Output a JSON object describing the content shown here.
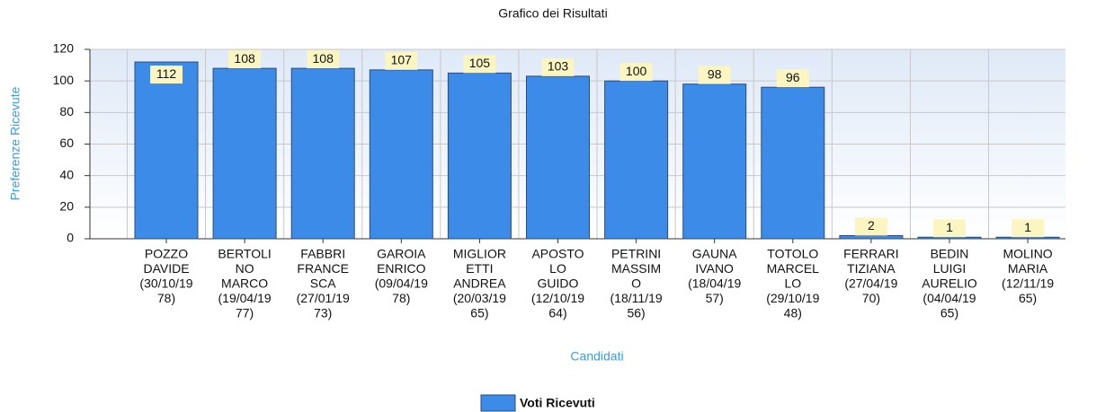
{
  "chart_data": {
    "type": "bar",
    "title": "Grafico dei Risultati",
    "x_label": "Candidati",
    "y_label": "Preferenze Ricevute",
    "categories": [
      [
        "POZZO",
        "DAVIDE",
        "(30/10/19",
        "78)"
      ],
      [
        "BERTOLI",
        "NO",
        "MARCO",
        "(19/04/19",
        "77)"
      ],
      [
        "FABBRI",
        "FRANCE",
        "SCA",
        "(27/01/19",
        "73)"
      ],
      [
        "GAROIA",
        "ENRICO",
        "(09/04/19",
        "78)"
      ],
      [
        "MIGLIOR",
        "ETTI",
        "ANDREA",
        "(20/03/19",
        "65)"
      ],
      [
        "APOSTO",
        "LO",
        "GUIDO",
        "(12/10/19",
        "64)"
      ],
      [
        "PETRINI",
        "MASSIM",
        "O",
        "(18/11/19",
        "56)"
      ],
      [
        "GAUNA",
        "IVANO",
        "(18/04/19",
        "57)"
      ],
      [
        "TOTOLO",
        "MARCEL",
        "LO",
        "(29/10/19",
        "48)"
      ],
      [
        "FERRARI",
        "TIZIANA",
        "(27/04/19",
        "70)"
      ],
      [
        "BEDIN",
        "LUIGI",
        "AURELIO",
        "(04/04/19",
        "65)"
      ],
      [
        "MOLINO",
        "MARIA",
        "(12/11/19",
        "65)"
      ]
    ],
    "series": [
      {
        "name": "Voti Ricevuti",
        "color": "#3d8be8",
        "values": [
          112,
          108,
          108,
          107,
          105,
          103,
          100,
          98,
          96,
          2,
          1,
          1
        ]
      }
    ],
    "ylim": [
      0,
      120
    ],
    "yticks": [
      0,
      20,
      40,
      60,
      80,
      100,
      120
    ],
    "grid": true
  }
}
